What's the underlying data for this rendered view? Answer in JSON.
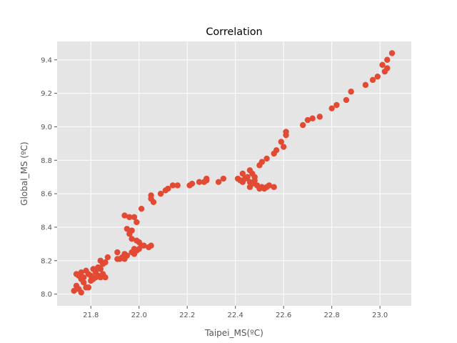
{
  "chart_data": {
    "type": "scatter",
    "title": "Correlation",
    "xlabel": "Taipei_MS(ºC)",
    "ylabel": "Global_MS (ºC)",
    "xlim": [
      21.66,
      23.13
    ],
    "ylim": [
      7.93,
      9.51
    ],
    "xticks": [
      "21.8",
      "22.0",
      "22.2",
      "22.4",
      "22.6",
      "22.8",
      "23.0"
    ],
    "yticks": [
      "8.0",
      "8.2",
      "8.4",
      "8.6",
      "8.8",
      "9.0",
      "9.2",
      "9.4"
    ],
    "grid": true,
    "marker_color": "#E24A33",
    "background_color": "#E5E5E5",
    "points": [
      [
        21.73,
        8.02
      ],
      [
        21.74,
        8.05
      ],
      [
        21.75,
        8.03
      ],
      [
        21.76,
        8.01
      ],
      [
        21.74,
        8.12
      ],
      [
        21.75,
        8.11
      ],
      [
        21.76,
        8.13
      ],
      [
        21.77,
        8.1
      ],
      [
        21.78,
        8.14
      ],
      [
        21.79,
        8.12
      ],
      [
        21.76,
        8.09
      ],
      [
        21.77,
        8.07
      ],
      [
        21.78,
        8.04
      ],
      [
        21.79,
        8.04
      ],
      [
        21.8,
        8.08
      ],
      [
        21.8,
        8.11
      ],
      [
        21.81,
        8.15
      ],
      [
        21.82,
        8.13
      ],
      [
        21.83,
        8.11
      ],
      [
        21.84,
        8.15
      ],
      [
        21.84,
        8.2
      ],
      [
        21.85,
        8.18
      ],
      [
        21.86,
        8.19
      ],
      [
        21.87,
        8.22
      ],
      [
        21.86,
        8.1
      ],
      [
        21.84,
        8.1
      ],
      [
        21.82,
        8.1
      ],
      [
        21.81,
        8.09
      ],
      [
        21.85,
        8.12
      ],
      [
        21.83,
        8.16
      ],
      [
        21.91,
        8.25
      ],
      [
        21.92,
        8.21
      ],
      [
        21.93,
        8.22
      ],
      [
        21.94,
        8.24
      ],
      [
        21.95,
        8.23
      ],
      [
        21.94,
        8.21
      ],
      [
        21.91,
        8.21
      ],
      [
        21.97,
        8.25
      ],
      [
        21.98,
        8.27
      ],
      [
        21.98,
        8.24
      ],
      [
        21.99,
        8.26
      ],
      [
        22.0,
        8.27
      ],
      [
        22.0,
        8.31
      ],
      [
        22.01,
        8.29
      ],
      [
        22.02,
        8.29
      ],
      [
        21.99,
        8.32
      ],
      [
        21.97,
        8.33
      ],
      [
        21.96,
        8.36
      ],
      [
        21.95,
        8.39
      ],
      [
        21.97,
        8.38
      ],
      [
        21.94,
        8.47
      ],
      [
        21.96,
        8.46
      ],
      [
        21.98,
        8.46
      ],
      [
        21.99,
        8.43
      ],
      [
        22.01,
        8.51
      ],
      [
        22.04,
        8.28
      ],
      [
        22.05,
        8.29
      ],
      [
        22.05,
        8.59
      ],
      [
        22.05,
        8.57
      ],
      [
        22.06,
        8.55
      ],
      [
        22.09,
        8.6
      ],
      [
        22.11,
        8.62
      ],
      [
        22.12,
        8.63
      ],
      [
        22.14,
        8.65
      ],
      [
        22.16,
        8.65
      ],
      [
        22.21,
        8.65
      ],
      [
        22.22,
        8.66
      ],
      [
        22.25,
        8.67
      ],
      [
        22.27,
        8.67
      ],
      [
        22.28,
        8.68
      ],
      [
        22.28,
        8.69
      ],
      [
        22.33,
        8.67
      ],
      [
        22.35,
        8.69
      ],
      [
        22.41,
        8.69
      ],
      [
        22.42,
        8.68
      ],
      [
        22.43,
        8.67
      ],
      [
        22.44,
        8.69
      ],
      [
        22.45,
        8.7
      ],
      [
        22.46,
        8.67
      ],
      [
        22.47,
        8.66
      ],
      [
        22.48,
        8.68
      ],
      [
        22.49,
        8.65
      ],
      [
        22.5,
        8.63
      ],
      [
        22.51,
        8.64
      ],
      [
        22.52,
        8.63
      ],
      [
        22.53,
        8.64
      ],
      [
        22.54,
        8.65
      ],
      [
        22.56,
        8.64
      ],
      [
        22.46,
        8.74
      ],
      [
        22.47,
        8.72
      ],
      [
        22.48,
        8.7
      ],
      [
        22.43,
        8.72
      ],
      [
        22.46,
        8.64
      ],
      [
        22.5,
        8.77
      ],
      [
        22.51,
        8.79
      ],
      [
        22.53,
        8.81
      ],
      [
        22.56,
        8.84
      ],
      [
        22.57,
        8.86
      ],
      [
        22.59,
        8.91
      ],
      [
        22.6,
        8.88
      ],
      [
        22.61,
        8.95
      ],
      [
        22.61,
        8.97
      ],
      [
        22.68,
        9.01
      ],
      [
        22.7,
        9.04
      ],
      [
        22.72,
        9.05
      ],
      [
        22.75,
        9.06
      ],
      [
        22.8,
        9.11
      ],
      [
        22.82,
        9.13
      ],
      [
        22.86,
        9.16
      ],
      [
        22.88,
        9.21
      ],
      [
        22.94,
        9.25
      ],
      [
        22.97,
        9.28
      ],
      [
        22.99,
        9.3
      ],
      [
        23.01,
        9.37
      ],
      [
        23.02,
        9.33
      ],
      [
        23.03,
        9.35
      ],
      [
        23.03,
        9.4
      ],
      [
        23.05,
        9.44
      ]
    ]
  }
}
